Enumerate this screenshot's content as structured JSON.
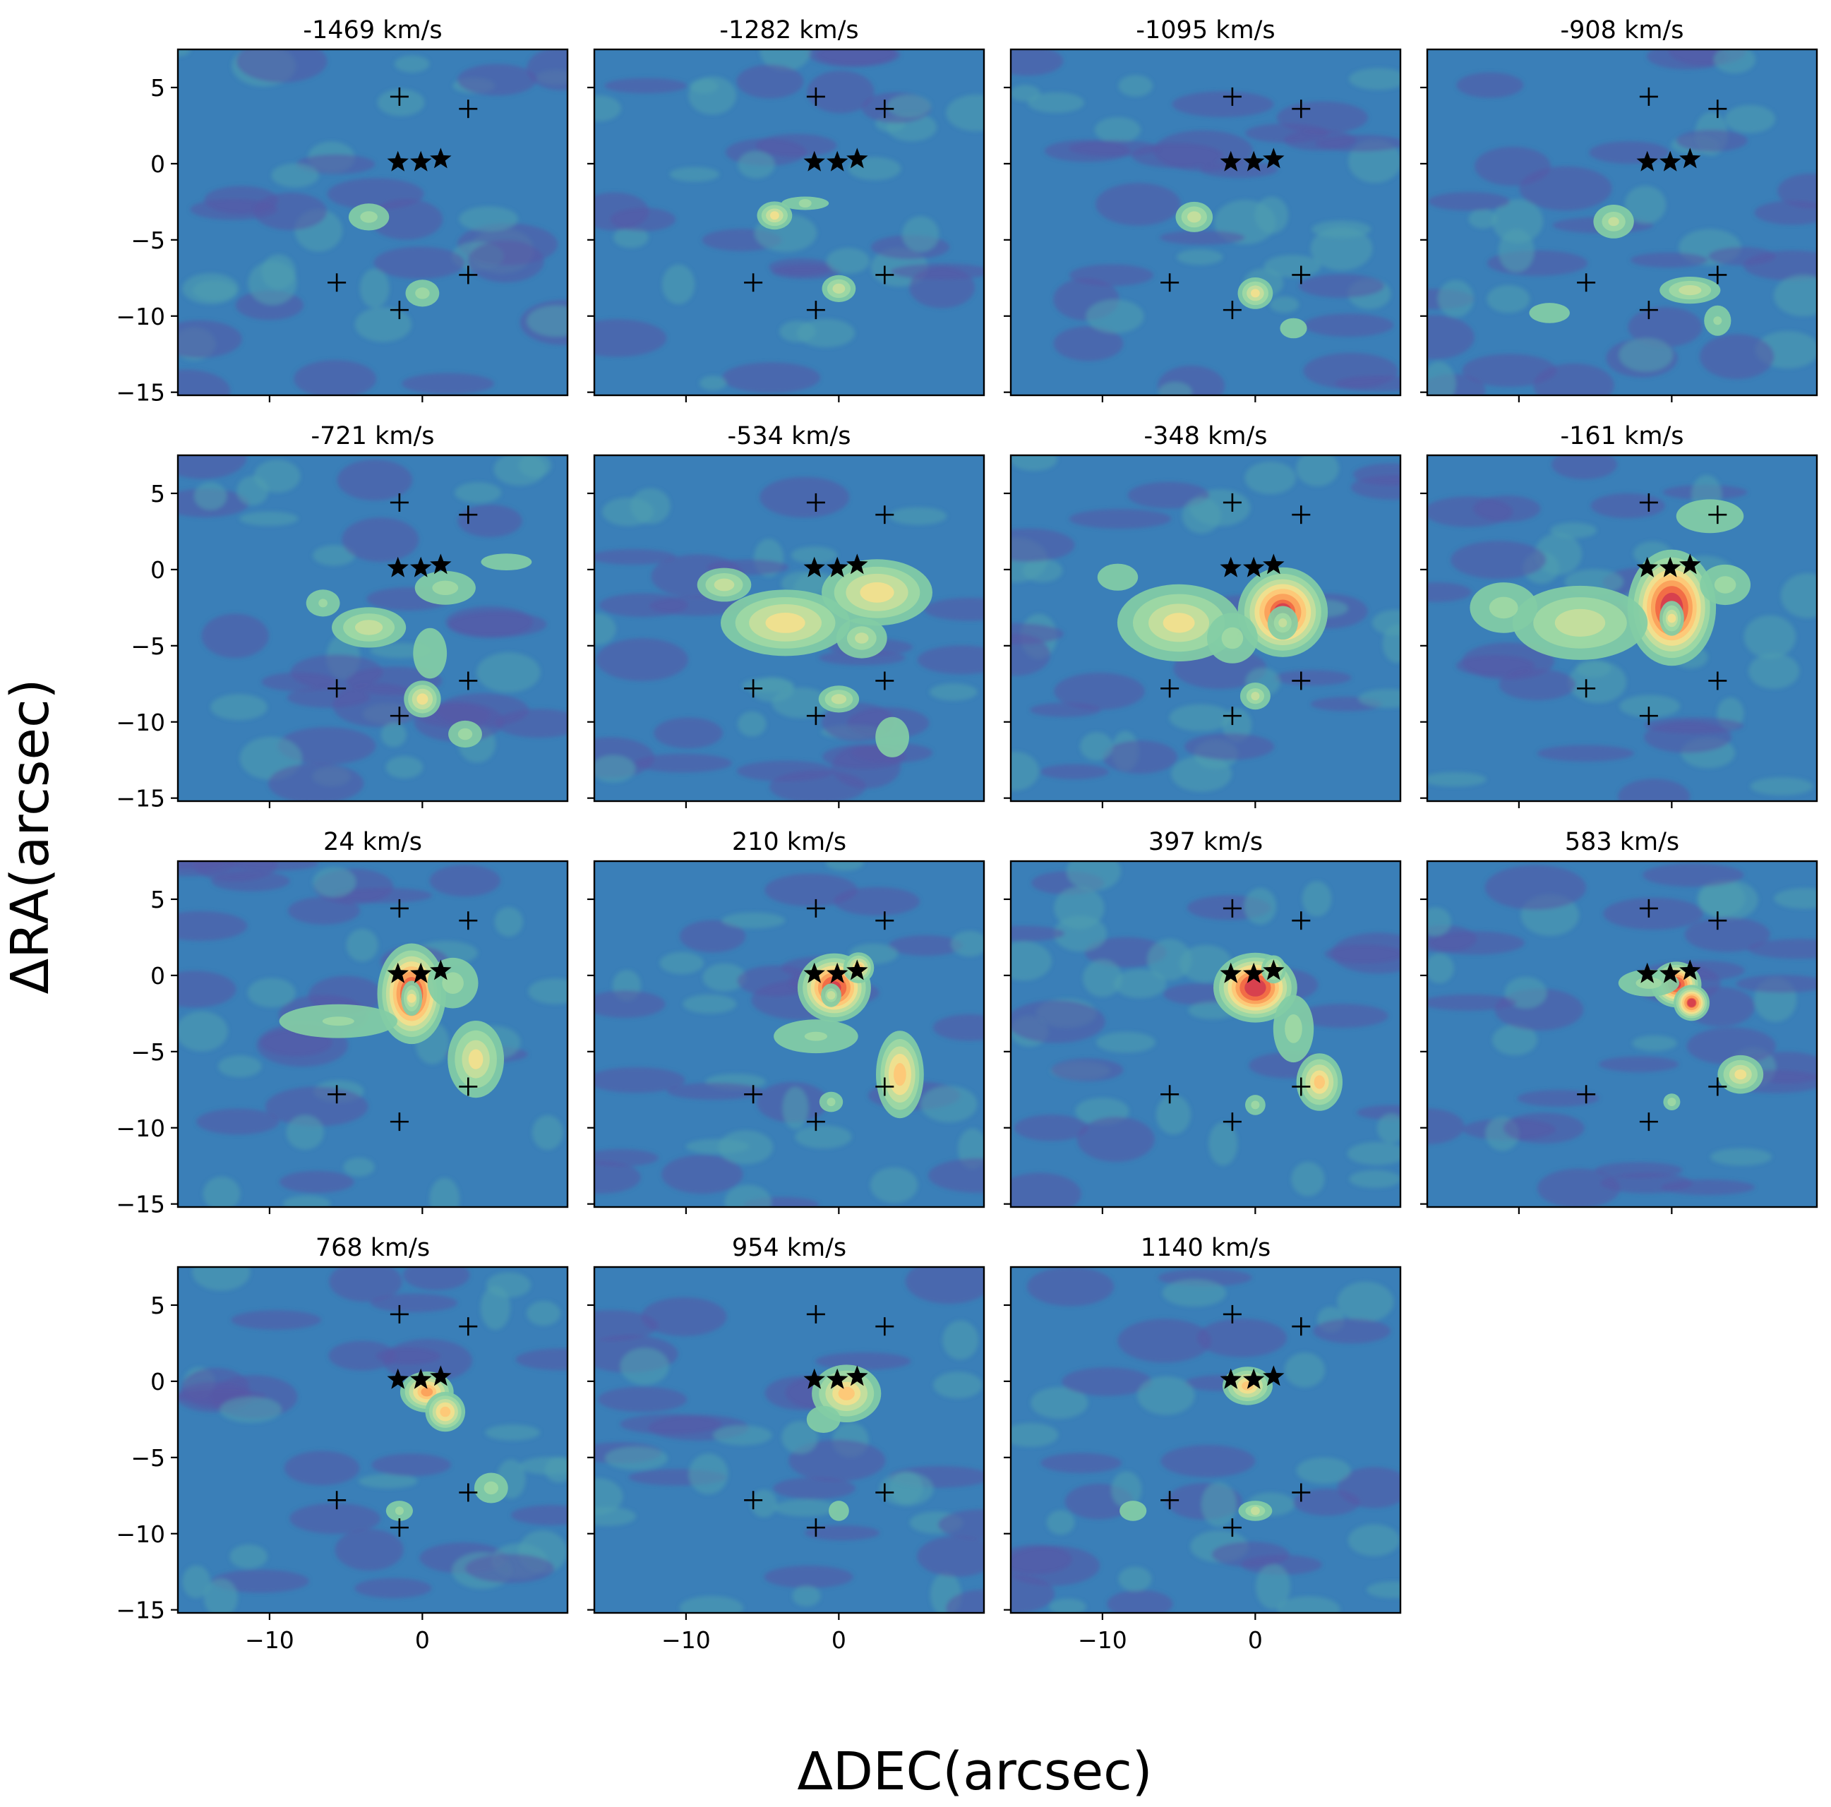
{
  "chart_data": {
    "type": "heatmap",
    "layout": "channel-map grid",
    "xlabel": "ΔDEC(arcsec)",
    "ylabel": "ΔRA(arcsec)",
    "xlim": [
      -16,
      9.5
    ],
    "ylim": [
      -15.2,
      7.5
    ],
    "xticks": [
      -10,
      0
    ],
    "yticks": [
      5,
      0,
      -5,
      -10,
      -15
    ],
    "colormap": "Spectral_r",
    "colors": {
      "background": "#3a7fb8",
      "low": "#5e4fa2",
      "mid": "#66c2a5",
      "high": "#fee08b",
      "peak": "#d53e4f"
    },
    "star_markers": [
      {
        "x": -1.6,
        "y": 0.1
      },
      {
        "x": -0.1,
        "y": 0.1
      },
      {
        "x": 1.2,
        "y": 0.3
      }
    ],
    "cross_markers": [
      {
        "x": -1.5,
        "y": 4.4
      },
      {
        "x": 3.0,
        "y": 3.6
      },
      {
        "x": -5.6,
        "y": -7.8
      },
      {
        "x": 3.0,
        "y": -7.3
      },
      {
        "x": -1.5,
        "y": -9.6
      }
    ],
    "panels": [
      {
        "title": "-1469 km/s",
        "blobs": [
          {
            "x": -3.5,
            "y": -3.5,
            "sx": 1.2,
            "sy": 0.8,
            "a": 0.35
          },
          {
            "x": 0,
            "y": -8.5,
            "sx": 1.0,
            "sy": 0.8,
            "a": 0.35
          }
        ]
      },
      {
        "title": "-1282 km/s",
        "blobs": [
          {
            "x": -4.2,
            "y": -3.4,
            "sx": 1.0,
            "sy": 0.8,
            "a": 0.5
          },
          {
            "x": -2.2,
            "y": -2.6,
            "sx": 1.4,
            "sy": 0.4,
            "a": 0.3
          },
          {
            "x": 0,
            "y": -8.2,
            "sx": 1.0,
            "sy": 0.8,
            "a": 0.45
          }
        ]
      },
      {
        "title": "-1095 km/s",
        "blobs": [
          {
            "x": -4,
            "y": -3.5,
            "sx": 1.1,
            "sy": 0.9,
            "a": 0.45
          },
          {
            "x": 0,
            "y": -8.5,
            "sx": 1.0,
            "sy": 0.9,
            "a": 0.5
          },
          {
            "x": 2.5,
            "y": -10.8,
            "sx": 0.8,
            "sy": 0.6,
            "a": 0.25
          }
        ]
      },
      {
        "title": "-908 km/s",
        "blobs": [
          {
            "x": -3.8,
            "y": -3.8,
            "sx": 1.2,
            "sy": 1.0,
            "a": 0.4
          },
          {
            "x": 1.2,
            "y": -8.3,
            "sx": 1.8,
            "sy": 0.8,
            "a": 0.45
          },
          {
            "x": 3.0,
            "y": -10.3,
            "sx": 0.8,
            "sy": 0.9,
            "a": 0.3
          },
          {
            "x": -8,
            "y": -9.8,
            "sx": 1.2,
            "sy": 0.6,
            "a": 0.25
          }
        ]
      },
      {
        "title": "-721 km/s",
        "blobs": [
          {
            "x": -3.5,
            "y": -3.8,
            "sx": 2.2,
            "sy": 1.2,
            "a": 0.45
          },
          {
            "x": -6.5,
            "y": -2.2,
            "sx": 1.0,
            "sy": 0.8,
            "a": 0.3
          },
          {
            "x": 1.5,
            "y": -1.2,
            "sx": 1.8,
            "sy": 1.0,
            "a": 0.35
          },
          {
            "x": 0,
            "y": -8.5,
            "sx": 1.0,
            "sy": 1.0,
            "a": 0.55
          },
          {
            "x": 2.8,
            "y": -10.8,
            "sx": 1.0,
            "sy": 0.8,
            "a": 0.35
          },
          {
            "x": 0.5,
            "y": -5.5,
            "sx": 1.0,
            "sy": 1.5,
            "a": 0.25
          },
          {
            "x": 5.5,
            "y": 0.5,
            "sx": 1.5,
            "sy": 0.5,
            "a": 0.2
          }
        ]
      },
      {
        "title": "-534 km/s",
        "blobs": [
          {
            "x": -7.5,
            "y": -1.0,
            "sx": 1.6,
            "sy": 1.0,
            "a": 0.45
          },
          {
            "x": -3.5,
            "y": -3.5,
            "sx": 3.5,
            "sy": 1.8,
            "a": 0.55
          },
          {
            "x": 2.5,
            "y": -1.5,
            "sx": 3.0,
            "sy": 1.8,
            "a": 0.55
          },
          {
            "x": 1.5,
            "y": -4.5,
            "sx": 1.5,
            "sy": 1.2,
            "a": 0.4
          },
          {
            "x": 0,
            "y": -8.5,
            "sx": 1.2,
            "sy": 0.8,
            "a": 0.45
          },
          {
            "x": 3.5,
            "y": -11,
            "sx": 1.0,
            "sy": 1.2,
            "a": 0.25
          }
        ]
      },
      {
        "title": "-348 km/s",
        "blobs": [
          {
            "x": 1.8,
            "y": -2.8,
            "sx": 2.0,
            "sy": 2.0,
            "a": 0.9
          },
          {
            "x": 1.8,
            "y": -3.5,
            "sx": 0.9,
            "sy": 1.0,
            "a": 0.4
          },
          {
            "x": -5,
            "y": -3.5,
            "sx": 3.5,
            "sy": 2.2,
            "a": 0.5
          },
          {
            "x": -1.5,
            "y": -4.5,
            "sx": 1.5,
            "sy": 1.5,
            "a": 0.35
          },
          {
            "x": 0,
            "y": -8.3,
            "sx": 0.9,
            "sy": 0.8,
            "a": 0.4
          },
          {
            "x": -9,
            "y": -0.5,
            "sx": 1.2,
            "sy": 0.8,
            "a": 0.25
          }
        ]
      },
      {
        "title": "-161 km/s",
        "blobs": [
          {
            "x": 0,
            "y": -2.5,
            "sx": 1.9,
            "sy": 2.5,
            "a": 1.0
          },
          {
            "x": 0,
            "y": -3.2,
            "sx": 0.7,
            "sy": 1.0,
            "a": 0.5
          },
          {
            "x": -6,
            "y": -3.5,
            "sx": 4.0,
            "sy": 2.2,
            "a": 0.45
          },
          {
            "x": -11,
            "y": -2.5,
            "sx": 2.0,
            "sy": 1.5,
            "a": 0.35
          },
          {
            "x": 3.5,
            "y": -1.0,
            "sx": 1.5,
            "sy": 1.2,
            "a": 0.35
          },
          {
            "x": 2.5,
            "y": 3.5,
            "sx": 2.0,
            "sy": 1.0,
            "a": 0.2
          }
        ]
      },
      {
        "title": "24 km/s",
        "blobs": [
          {
            "x": -0.7,
            "y": -1.2,
            "sx": 1.5,
            "sy": 2.2,
            "a": 0.95
          },
          {
            "x": -0.7,
            "y": -1.5,
            "sx": 0.6,
            "sy": 1.0,
            "a": 0.5
          },
          {
            "x": 3.5,
            "y": -5.5,
            "sx": 1.6,
            "sy": 2.2,
            "a": 0.5
          },
          {
            "x": 2.0,
            "y": -0.5,
            "sx": 1.5,
            "sy": 1.5,
            "a": 0.35
          },
          {
            "x": -5.5,
            "y": -3.0,
            "sx": 3.5,
            "sy": 1.0,
            "a": 0.3
          }
        ]
      },
      {
        "title": "210 km/s",
        "blobs": [
          {
            "x": -0.3,
            "y": -0.8,
            "sx": 1.6,
            "sy": 1.5,
            "a": 0.95
          },
          {
            "x": -0.5,
            "y": -1.3,
            "sx": 0.6,
            "sy": 0.7,
            "a": 0.4
          },
          {
            "x": 1.3,
            "y": 0.5,
            "sx": 0.8,
            "sy": 0.8,
            "a": 0.6
          },
          {
            "x": 4,
            "y": -6.5,
            "sx": 1.2,
            "sy": 2.2,
            "a": 0.65
          },
          {
            "x": -1.5,
            "y": -4.0,
            "sx": 2.5,
            "sy": 1.0,
            "a": 0.3
          },
          {
            "x": -0.5,
            "y": -8.3,
            "sx": 0.7,
            "sy": 0.6,
            "a": 0.3
          }
        ]
      },
      {
        "title": "397 km/s",
        "blobs": [
          {
            "x": 0,
            "y": -0.8,
            "sx": 1.8,
            "sy": 1.5,
            "a": 1.0
          },
          {
            "x": 1.2,
            "y": 0.4,
            "sx": 0.7,
            "sy": 0.8,
            "a": 0.5
          },
          {
            "x": 4.2,
            "y": -7.0,
            "sx": 1.2,
            "sy": 1.5,
            "a": 0.6
          },
          {
            "x": 2.5,
            "y": -3.5,
            "sx": 1.2,
            "sy": 2.0,
            "a": 0.35
          },
          {
            "x": 0,
            "y": -8.5,
            "sx": 0.6,
            "sy": 0.6,
            "a": 0.3
          }
        ]
      },
      {
        "title": "583 km/s",
        "blobs": [
          {
            "x": 0.3,
            "y": -0.6,
            "sx": 1.1,
            "sy": 1.0,
            "a": 0.95
          },
          {
            "x": 1.3,
            "y": -1.8,
            "sx": 0.8,
            "sy": 0.8,
            "a": 0.9
          },
          {
            "x": 4.5,
            "y": -6.5,
            "sx": 1.3,
            "sy": 1.1,
            "a": 0.5
          },
          {
            "x": -1.5,
            "y": -0.5,
            "sx": 1.8,
            "sy": 0.8,
            "a": 0.35
          },
          {
            "x": 0,
            "y": -8.3,
            "sx": 0.5,
            "sy": 0.5,
            "a": 0.3
          }
        ]
      },
      {
        "title": "768 km/s",
        "blobs": [
          {
            "x": 0.3,
            "y": -0.7,
            "sx": 1.3,
            "sy": 1.0,
            "a": 0.7
          },
          {
            "x": 1.5,
            "y": -2.0,
            "sx": 1.0,
            "sy": 1.0,
            "a": 0.65
          },
          {
            "x": 4.5,
            "y": -7.0,
            "sx": 1.0,
            "sy": 0.9,
            "a": 0.35
          },
          {
            "x": -1.5,
            "y": -8.5,
            "sx": 0.8,
            "sy": 0.6,
            "a": 0.3
          }
        ]
      },
      {
        "title": "954 km/s",
        "blobs": [
          {
            "x": 0.5,
            "y": -0.8,
            "sx": 1.8,
            "sy": 1.5,
            "a": 0.6
          },
          {
            "x": -1,
            "y": -2.5,
            "sx": 1.0,
            "sy": 0.8,
            "a": 0.25
          },
          {
            "x": 0,
            "y": -8.5,
            "sx": 0.6,
            "sy": 0.6,
            "a": 0.25
          }
        ]
      },
      {
        "title": "1140 km/s",
        "blobs": [
          {
            "x": -0.5,
            "y": -0.3,
            "sx": 1.3,
            "sy": 1.0,
            "a": 0.6
          },
          {
            "x": 0,
            "y": -8.5,
            "sx": 1.0,
            "sy": 0.6,
            "a": 0.4
          },
          {
            "x": -8,
            "y": -8.5,
            "sx": 0.8,
            "sy": 0.6,
            "a": 0.2
          }
        ]
      }
    ]
  }
}
